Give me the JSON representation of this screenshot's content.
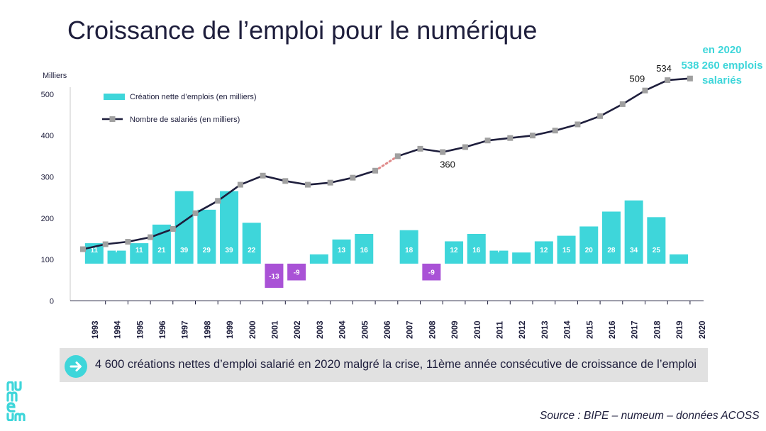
{
  "title": "Croissance de l’emploi pour le numérique",
  "banner": {
    "text": "4 600 créations nettes d’emploi salarié en 2020 malgré la crise, 11ème année consécutive de croissance de l’emploi"
  },
  "source": "Source : BIPE – numeum – données ACOSS",
  "logo": {
    "text": "numeum"
  },
  "colors": {
    "bar_positive": "#3ed6da",
    "bar_negative": "#a952d6",
    "line": "#1e1e3c",
    "marker": "#a0a0a0",
    "dotted_segment": "#e08a8a",
    "callout": "#3ed6da",
    "text": "#1e1e3c"
  },
  "chart_data": {
    "type": "bar+line",
    "ylabel": "Milliers",
    "ylim": [
      0,
      500
    ],
    "yticks": [
      "0",
      "100",
      "200",
      "300",
      "400",
      "500"
    ],
    "categories": [
      "1993",
      "1994",
      "1995",
      "1996",
      "1997",
      "1998",
      "1999",
      "2000",
      "2001",
      "2002",
      "2003",
      "2004",
      "2005",
      "2006",
      "2007",
      "2008",
      "2009",
      "2010",
      "2011",
      "2012",
      "2013",
      "2014",
      "2015",
      "2016",
      "2017",
      "2018",
      "2019",
      "2020"
    ],
    "legend": {
      "bars": "Création nette d’emplois (en milliers)",
      "line": "Nombre de salariés (en milliers)",
      "placement": "top-left"
    },
    "bars": {
      "name": "Création nette d’emplois (en milliers)",
      "baseline": 90,
      "categories": [
        "1994",
        "1995",
        "1996",
        "1997",
        "1998",
        "1999",
        "2000",
        "2001",
        "2002",
        "2003",
        "2004",
        "2005",
        "2006",
        "2007",
        "2009",
        "2010",
        "2011",
        "2012",
        "2013",
        "2014",
        "2015",
        "2016",
        "2017",
        "2018",
        "2019",
        "2020"
      ],
      "values": [
        11,
        7,
        11,
        21,
        39,
        29,
        39,
        22,
        -13,
        -9,
        5,
        13,
        16,
        18,
        -9,
        12,
        16,
        7,
        6,
        12,
        15,
        20,
        28,
        34,
        25,
        5
      ],
      "labels": [
        "11",
        "7",
        "11",
        "21",
        "39",
        "29",
        "39",
        "22",
        "-13",
        "-9",
        "5",
        "13",
        "16",
        "18",
        "-9",
        "12",
        "16",
        "7",
        "6",
        "12",
        "15",
        "20",
        "28",
        "34",
        "25",
        "5"
      ],
      "positions": [
        0.5,
        1.5,
        2.5,
        3.5,
        4.5,
        5.5,
        6.5,
        7.5,
        8.5,
        9.5,
        10.5,
        11.5,
        12.5,
        14.5,
        15.5,
        16.5,
        17.5,
        18.5,
        19.5,
        20.5,
        21.5,
        22.5,
        23.5,
        24.5,
        25.5,
        26.5
      ]
    },
    "line": {
      "name": "Nombre de salariés (en milliers)",
      "x": [
        0,
        1,
        2,
        3,
        4,
        5,
        6,
        7,
        8,
        9,
        10,
        11,
        12,
        13,
        14,
        15,
        16,
        17,
        18,
        19,
        20,
        21,
        22,
        23,
        24,
        25,
        26,
        27
      ],
      "values": [
        125,
        137,
        143,
        154,
        174,
        212,
        242,
        281,
        303,
        290,
        281,
        286,
        298,
        315,
        350,
        368,
        360,
        372,
        388,
        394,
        400,
        412,
        427,
        447,
        476,
        509,
        534,
        538
      ],
      "dotted_segment": [
        13,
        14
      ]
    },
    "annotations": [
      {
        "text": "509",
        "index": 25
      },
      {
        "text": "534",
        "index": 26
      },
      {
        "text": "360",
        "index": 16
      }
    ],
    "callout": [
      "en 2020",
      "538 260 emplois",
      "salariés"
    ]
  }
}
